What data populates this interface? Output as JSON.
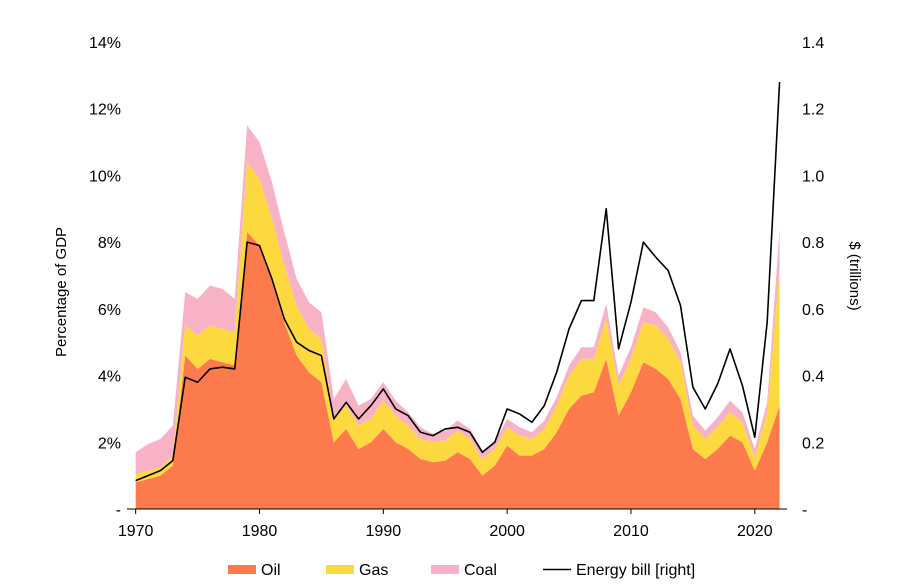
{
  "chart_data": {
    "type": "area",
    "title": "",
    "xlabel": "",
    "ylabel_left": "Percentage of GDP",
    "ylabel_right": "$ (trillions)",
    "x_ticks": [
      "1970",
      "1980",
      "1990",
      "2000",
      "2010",
      "2020"
    ],
    "y_left_ticks": [
      "-",
      "2%",
      "4%",
      "6%",
      "8%",
      "10%",
      "12%",
      "14%"
    ],
    "y_right_ticks": [
      "-",
      "0.2",
      "0.4",
      "0.6",
      "0.8",
      "1.0",
      "1.2",
      "1.4"
    ],
    "ylim_left": [
      0,
      14
    ],
    "ylim_right": [
      0,
      1.4
    ],
    "xlim": [
      1969.3,
      2022.6
    ],
    "stacked": true,
    "legend_position": "bottom",
    "x": [
      1970,
      1971,
      1972,
      1973,
      1974,
      1975,
      1976,
      1977,
      1978,
      1979,
      1980,
      1981,
      1982,
      1983,
      1984,
      1985,
      1986,
      1987,
      1988,
      1989,
      1990,
      1991,
      1992,
      1993,
      1994,
      1995,
      1996,
      1997,
      1998,
      1999,
      2000,
      2001,
      2002,
      2003,
      2004,
      2005,
      2006,
      2007,
      2008,
      2009,
      2010,
      2011,
      2012,
      2013,
      2014,
      2015,
      2016,
      2017,
      2018,
      2019,
      2020,
      2021,
      2022
    ],
    "series": [
      {
        "name": "Oil",
        "color": "#fd7a4d",
        "values": [
          0.8,
          0.9,
          1.0,
          1.3,
          4.6,
          4.2,
          4.5,
          4.4,
          4.3,
          8.3,
          7.9,
          6.8,
          5.6,
          4.6,
          4.1,
          3.8,
          2.0,
          2.4,
          1.8,
          2.0,
          2.4,
          2.0,
          1.8,
          1.5,
          1.4,
          1.45,
          1.7,
          1.5,
          1.0,
          1.3,
          1.9,
          1.6,
          1.6,
          1.8,
          2.3,
          3.0,
          3.4,
          3.5,
          4.5,
          2.8,
          3.5,
          4.4,
          4.2,
          3.9,
          3.3,
          1.8,
          1.5,
          1.8,
          2.2,
          2.0,
          1.15,
          2.0,
          3.1
        ]
      },
      {
        "name": "Gas",
        "color": "#fdd940",
        "values": [
          0.25,
          0.25,
          0.25,
          0.3,
          0.9,
          1.0,
          1.0,
          1.0,
          1.0,
          2.1,
          2.0,
          1.9,
          1.7,
          1.5,
          1.3,
          1.3,
          0.7,
          0.7,
          0.7,
          0.7,
          0.85,
          0.8,
          0.7,
          0.6,
          0.6,
          0.6,
          0.65,
          0.6,
          0.5,
          0.5,
          0.55,
          0.6,
          0.5,
          0.6,
          0.8,
          1.0,
          1.1,
          1.0,
          1.2,
          0.9,
          1.0,
          1.2,
          1.3,
          1.2,
          1.1,
          0.7,
          0.6,
          0.65,
          0.7,
          0.6,
          0.4,
          0.9,
          4.1
        ]
      },
      {
        "name": "Coal",
        "color": "#f8b2c5",
        "values": [
          0.65,
          0.8,
          0.85,
          0.9,
          1.0,
          1.1,
          1.2,
          1.2,
          1.0,
          1.1,
          1.1,
          1.1,
          1.0,
          0.8,
          0.8,
          0.8,
          0.6,
          0.8,
          0.6,
          0.6,
          0.55,
          0.45,
          0.4,
          0.35,
          0.25,
          0.3,
          0.3,
          0.3,
          0.25,
          0.2,
          0.25,
          0.25,
          0.2,
          0.25,
          0.25,
          0.3,
          0.35,
          0.35,
          0.45,
          0.3,
          0.35,
          0.45,
          0.4,
          0.35,
          0.3,
          0.3,
          0.25,
          0.3,
          0.35,
          0.3,
          0.25,
          0.3,
          1.2
        ]
      },
      {
        "name": "Energy bill [right]",
        "color": "#000000",
        "axis": "right",
        "values": [
          0.085,
          0.1,
          0.115,
          0.145,
          0.395,
          0.38,
          0.42,
          0.425,
          0.42,
          0.8,
          0.79,
          0.69,
          0.57,
          0.5,
          0.475,
          0.46,
          0.27,
          0.32,
          0.27,
          0.31,
          0.36,
          0.3,
          0.28,
          0.23,
          0.22,
          0.24,
          0.245,
          0.23,
          0.17,
          0.2,
          0.3,
          0.285,
          0.26,
          0.31,
          0.41,
          0.54,
          0.625,
          0.625,
          0.9,
          0.48,
          0.62,
          0.8,
          0.755,
          0.715,
          0.61,
          0.365,
          0.3,
          0.375,
          0.48,
          0.37,
          0.215,
          0.56,
          1.28
        ]
      }
    ]
  }
}
